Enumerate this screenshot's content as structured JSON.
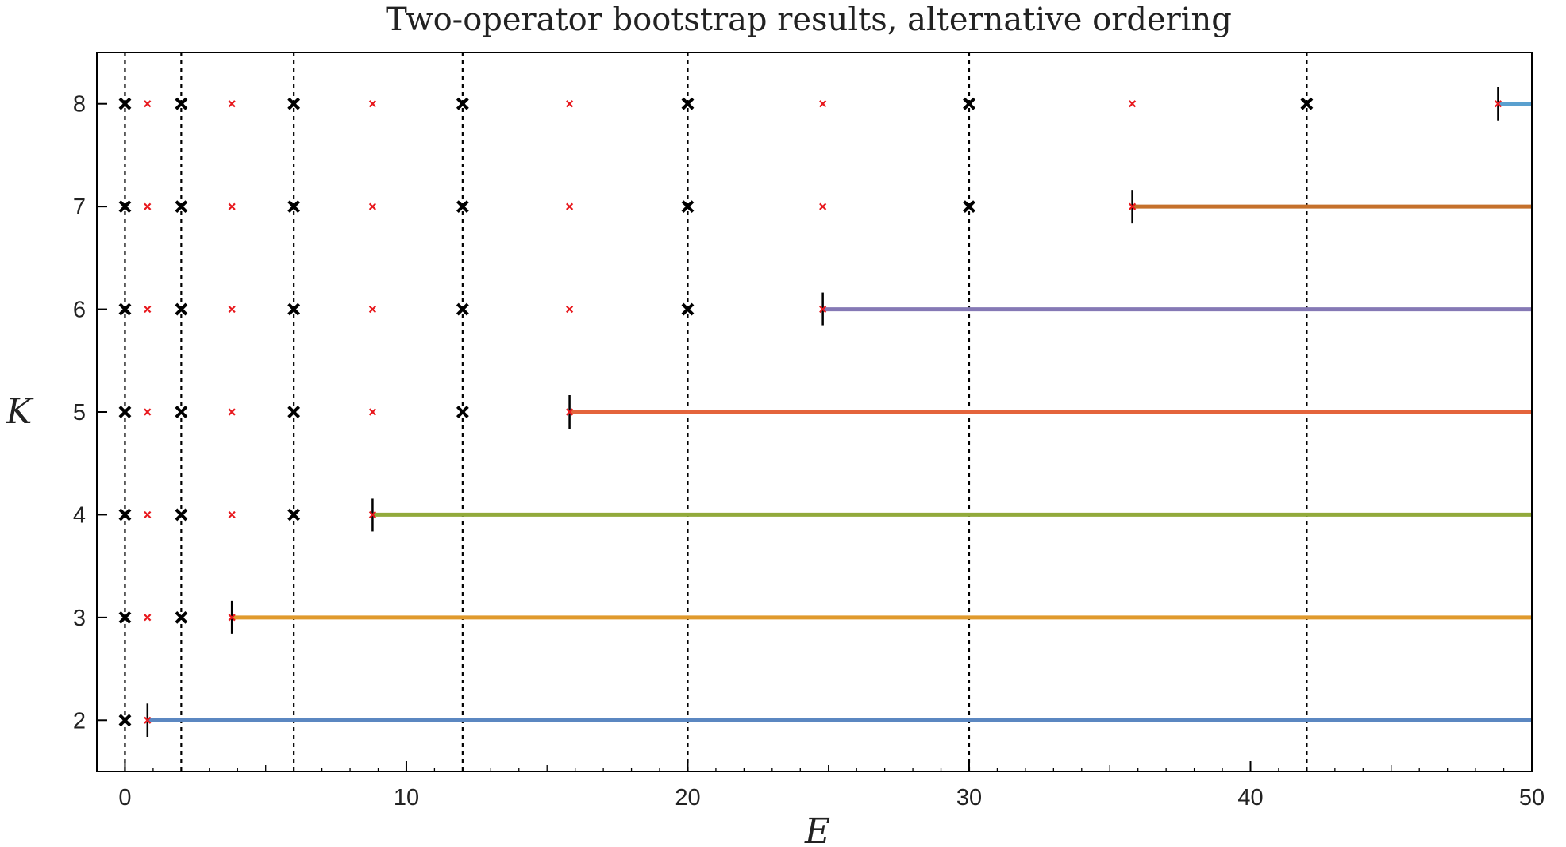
{
  "chart_data": {
    "type": "scatter",
    "title": "Two-operator bootstrap results, alternative ordering",
    "xlabel": "E",
    "ylabel": "K",
    "xlim": [
      -1,
      50
    ],
    "ylim": [
      1.5,
      8.5
    ],
    "xticks": [
      0,
      10,
      20,
      30,
      40,
      50
    ],
    "yticks": [
      2,
      3,
      4,
      5,
      6,
      7,
      8
    ],
    "grid": "dashed vertical reference lines",
    "reference_lines_x": [
      0,
      2,
      6,
      12,
      20,
      30,
      42
    ],
    "exact_levels": [
      {
        "K": 2,
        "E": [
          0
        ]
      },
      {
        "K": 3,
        "E": [
          0,
          2
        ]
      },
      {
        "K": 4,
        "E": [
          0,
          2,
          6
        ]
      },
      {
        "K": 5,
        "E": [
          0,
          2,
          6,
          12
        ]
      },
      {
        "K": 6,
        "E": [
          0,
          2,
          6,
          12,
          20
        ]
      },
      {
        "K": 7,
        "E": [
          0,
          2,
          6,
          12,
          20,
          30
        ]
      },
      {
        "K": 8,
        "E": [
          0,
          2,
          6,
          12,
          20,
          30,
          42
        ]
      }
    ],
    "bootstrap_points": [
      {
        "K": 2,
        "E": [
          0.8
        ]
      },
      {
        "K": 3,
        "E": [
          0.8,
          3.8
        ]
      },
      {
        "K": 4,
        "E": [
          0.8,
          3.8,
          8.8
        ]
      },
      {
        "K": 5,
        "E": [
          0.8,
          3.8,
          8.8,
          15.8
        ]
      },
      {
        "K": 6,
        "E": [
          0.8,
          3.8,
          8.8,
          15.8,
          24.8
        ]
      },
      {
        "K": 7,
        "E": [
          0.8,
          3.8,
          8.8,
          15.8,
          24.8,
          35.8
        ]
      },
      {
        "K": 8,
        "E": [
          0.8,
          3.8,
          8.8,
          15.8,
          24.8,
          35.8,
          48.8
        ]
      }
    ],
    "allowed_regions": [
      {
        "K": 2,
        "from": 0.8,
        "to": 50,
        "color": "#5b87c1"
      },
      {
        "K": 3,
        "from": 3.8,
        "to": 50,
        "color": "#e09a2d"
      },
      {
        "K": 4,
        "from": 8.8,
        "to": 50,
        "color": "#92aa3b"
      },
      {
        "K": 5,
        "from": 15.8,
        "to": 50,
        "color": "#e4643c"
      },
      {
        "K": 6,
        "from": 24.8,
        "to": 50,
        "color": "#8579b5"
      },
      {
        "K": 7,
        "from": 35.8,
        "to": 50,
        "color": "#c5702b"
      },
      {
        "K": 8,
        "from": 48.8,
        "to": 50,
        "color": "#5aa0cf"
      }
    ],
    "colors": {
      "exact_marker": "#000000",
      "bootstrap_marker": "#e8191e",
      "reference_line": "#000000"
    }
  }
}
